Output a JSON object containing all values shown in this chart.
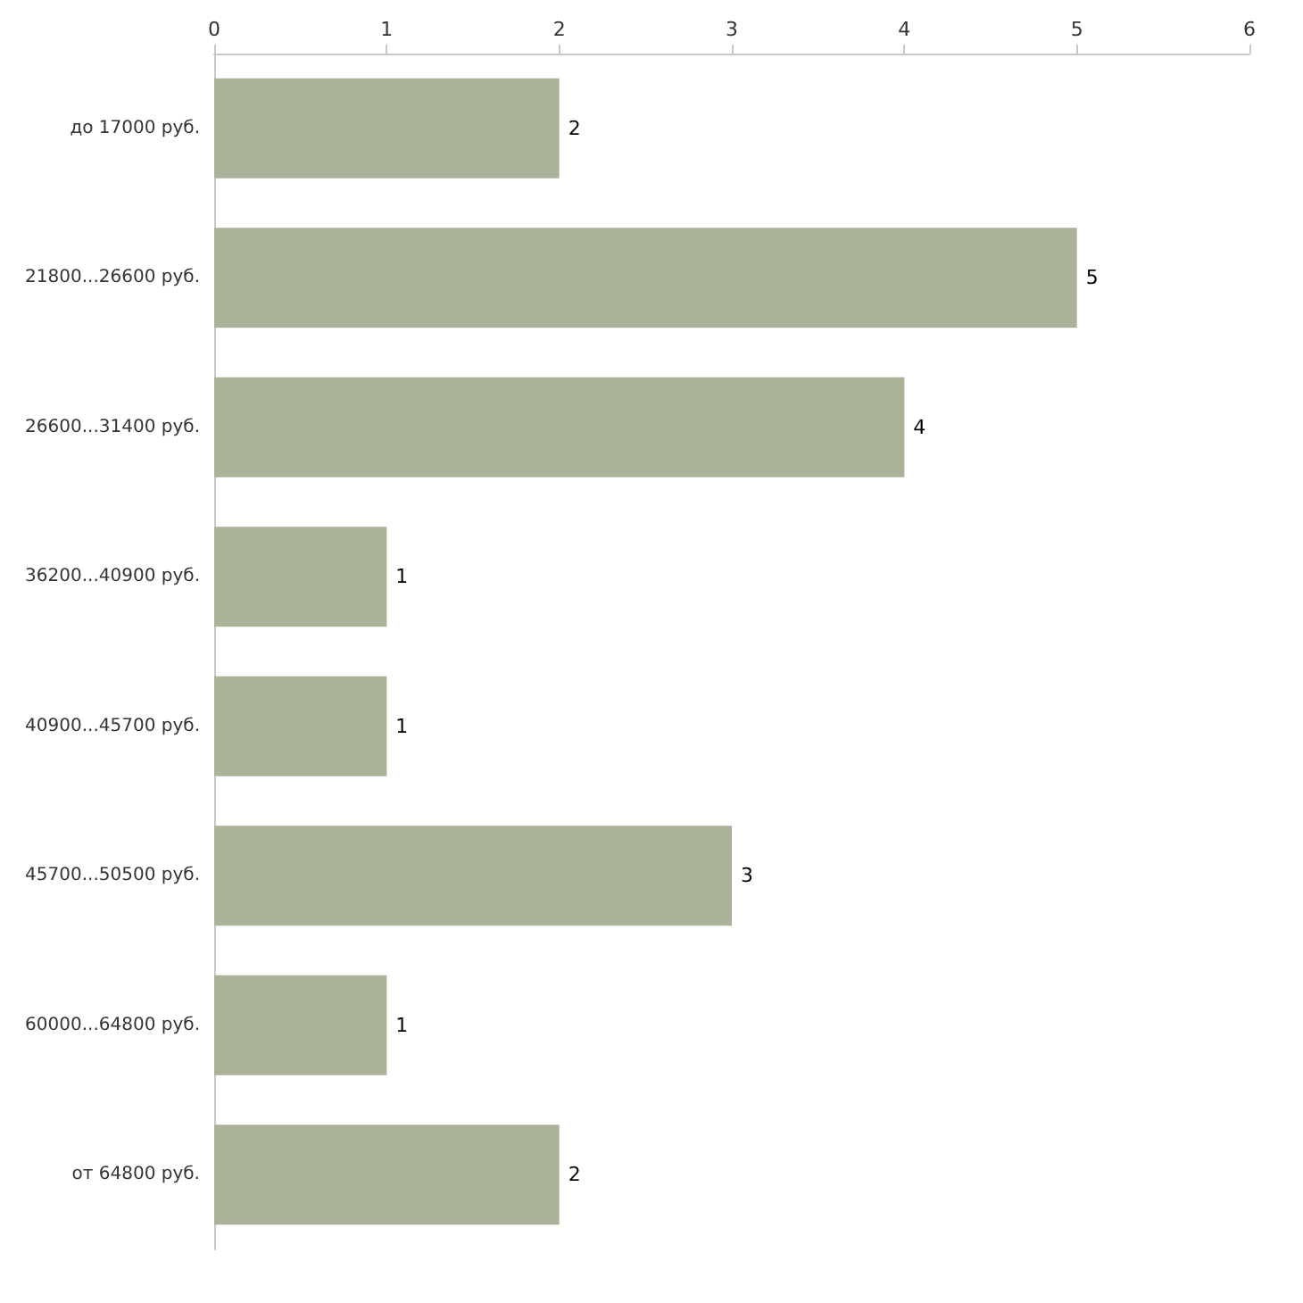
{
  "chart_data": {
    "type": "bar",
    "orientation": "horizontal",
    "categories": [
      "до 17000 руб.",
      "21800...26600 руб.",
      "26600...31400 руб.",
      "36200...40900 руб.",
      "40900...45700 руб.",
      "45700...50500 руб.",
      "60000...64800 руб.",
      "от 64800 руб."
    ],
    "values": [
      2,
      5,
      4,
      1,
      1,
      3,
      1,
      2
    ],
    "color": "#aab299",
    "xlim": [
      0,
      6
    ],
    "xticks": [
      0,
      1,
      2,
      3,
      4,
      5,
      6
    ],
    "grid": false,
    "data_labels": true
  }
}
